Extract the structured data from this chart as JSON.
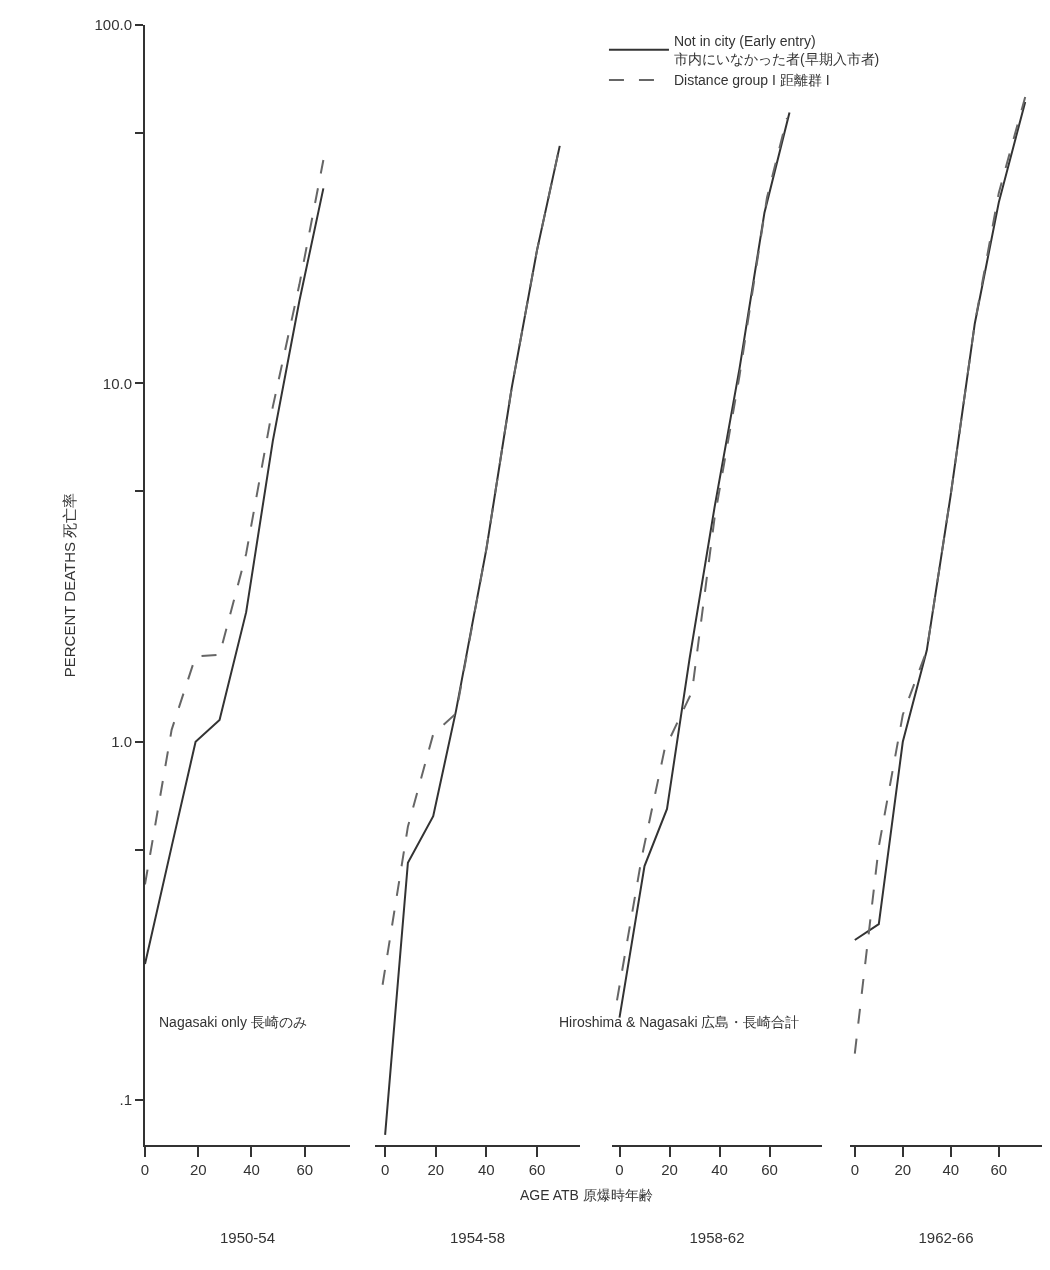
{
  "chart_data": [
    {
      "type": "line",
      "log": true,
      "ylabel": "PERCENT DEATHS 死亡率",
      "xlabel": "1950-54",
      "xlim": [
        0,
        77
      ],
      "xticks": [
        0,
        20,
        40,
        60
      ],
      "ylim": [
        0.075,
        100
      ],
      "yticks": [
        {
          "value": 100,
          "label": "100.0"
        },
        {
          "value": 50,
          "label": null
        },
        {
          "value": 10,
          "label": "10.0"
        },
        {
          "value": 5,
          "label": null
        },
        {
          "value": 1,
          "label": "1.0"
        },
        {
          "value": 0.5,
          "label": null
        },
        {
          "value": 0.1,
          "label": ".1"
        }
      ],
      "annotations": [
        "Nagasaki only 長崎のみ"
      ],
      "series": [
        {
          "color": "#333333",
          "line_style": "solid",
          "x": [
            0,
            10,
            19,
            28,
            38,
            48,
            58,
            67
          ],
          "values": [
            0.24,
            0.51,
            1.0,
            1.15,
            2.3,
            6.9,
            17,
            35
          ]
        },
        {
          "color": "#666666",
          "line_style": "dashed",
          "x": [
            0,
            10,
            19,
            28,
            38,
            48,
            58,
            67
          ],
          "values": [
            0.4,
            1.08,
            1.73,
            1.75,
            3.35,
            8.6,
            18.9,
            42
          ]
        }
      ]
    },
    {
      "type": "line",
      "log": true,
      "xlabel": "1954-58",
      "xlim": [
        -4,
        77
      ],
      "xticks": [
        0,
        20,
        40,
        60
      ],
      "ylim": [
        0.075,
        100
      ],
      "tick_labels": "x",
      "annotations": [
        "AGE ATB 原爆時年齢"
      ],
      "series": [
        {
          "color": "#333333",
          "line_style": "solid",
          "x": [
            0,
            9,
            19,
            28,
            40,
            50,
            60,
            69
          ],
          "values": [
            0.08,
            0.46,
            0.62,
            1.22,
            3.45,
            9.7,
            23.5,
            46
          ]
        },
        {
          "color": "#666666",
          "line_style": "dashed",
          "x": [
            -1,
            9,
            19,
            28,
            40,
            50,
            60,
            69
          ],
          "values": [
            0.21,
            0.58,
            1.05,
            1.2,
            3.45,
            9.7,
            23.5,
            46
          ]
        }
      ]
    },
    {
      "type": "line",
      "log": true,
      "xlabel": "1958-62",
      "xlim": [
        -3,
        81
      ],
      "xticks": [
        0,
        20,
        40,
        60
      ],
      "ylim": [
        0.075,
        100
      ],
      "tick_labels": "x",
      "annotations": [
        "Hiroshima & Nagasaki 広島・長崎合計"
      ],
      "legend": "top right",
      "series": [
        {
          "name": "Not in city (Early entry)\n市内にいなかった者(早期入市者)",
          "color": "#333333",
          "line_style": "solid",
          "x": [
            0,
            10,
            19,
            28,
            38,
            48,
            58,
            68
          ],
          "values": [
            0.17,
            0.45,
            0.65,
            1.7,
            4.5,
            11,
            30,
            57
          ]
        },
        {
          "name": "Distance group I 距離群 I",
          "color": "#666666",
          "line_style": "dashed",
          "x": [
            -1,
            9,
            18,
            29,
            38,
            48,
            59,
            67
          ],
          "values": [
            0.19,
            0.48,
            0.95,
            1.38,
            4.2,
            10.5,
            33,
            55
          ]
        }
      ]
    },
    {
      "type": "line",
      "log": true,
      "xlabel": "1962-66",
      "xlim": [
        -2,
        78
      ],
      "xticks": [
        0,
        20,
        40,
        60
      ],
      "ylim": [
        0.075,
        100
      ],
      "tick_labels": "x",
      "series": [
        {
          "color": "#333333",
          "line_style": "solid",
          "x": [
            0,
            10,
            20,
            30,
            40,
            50,
            60,
            71
          ],
          "values": [
            0.28,
            0.31,
            1.0,
            1.8,
            4.9,
            14.7,
            32,
            61
          ]
        },
        {
          "color": "#666666",
          "line_style": "dashed",
          "x": [
            0,
            10,
            20,
            30,
            40,
            50,
            60,
            71
          ],
          "values": [
            0.135,
            0.51,
            1.19,
            1.8,
            4.9,
            14.7,
            34,
            63
          ]
        }
      ]
    }
  ]
}
